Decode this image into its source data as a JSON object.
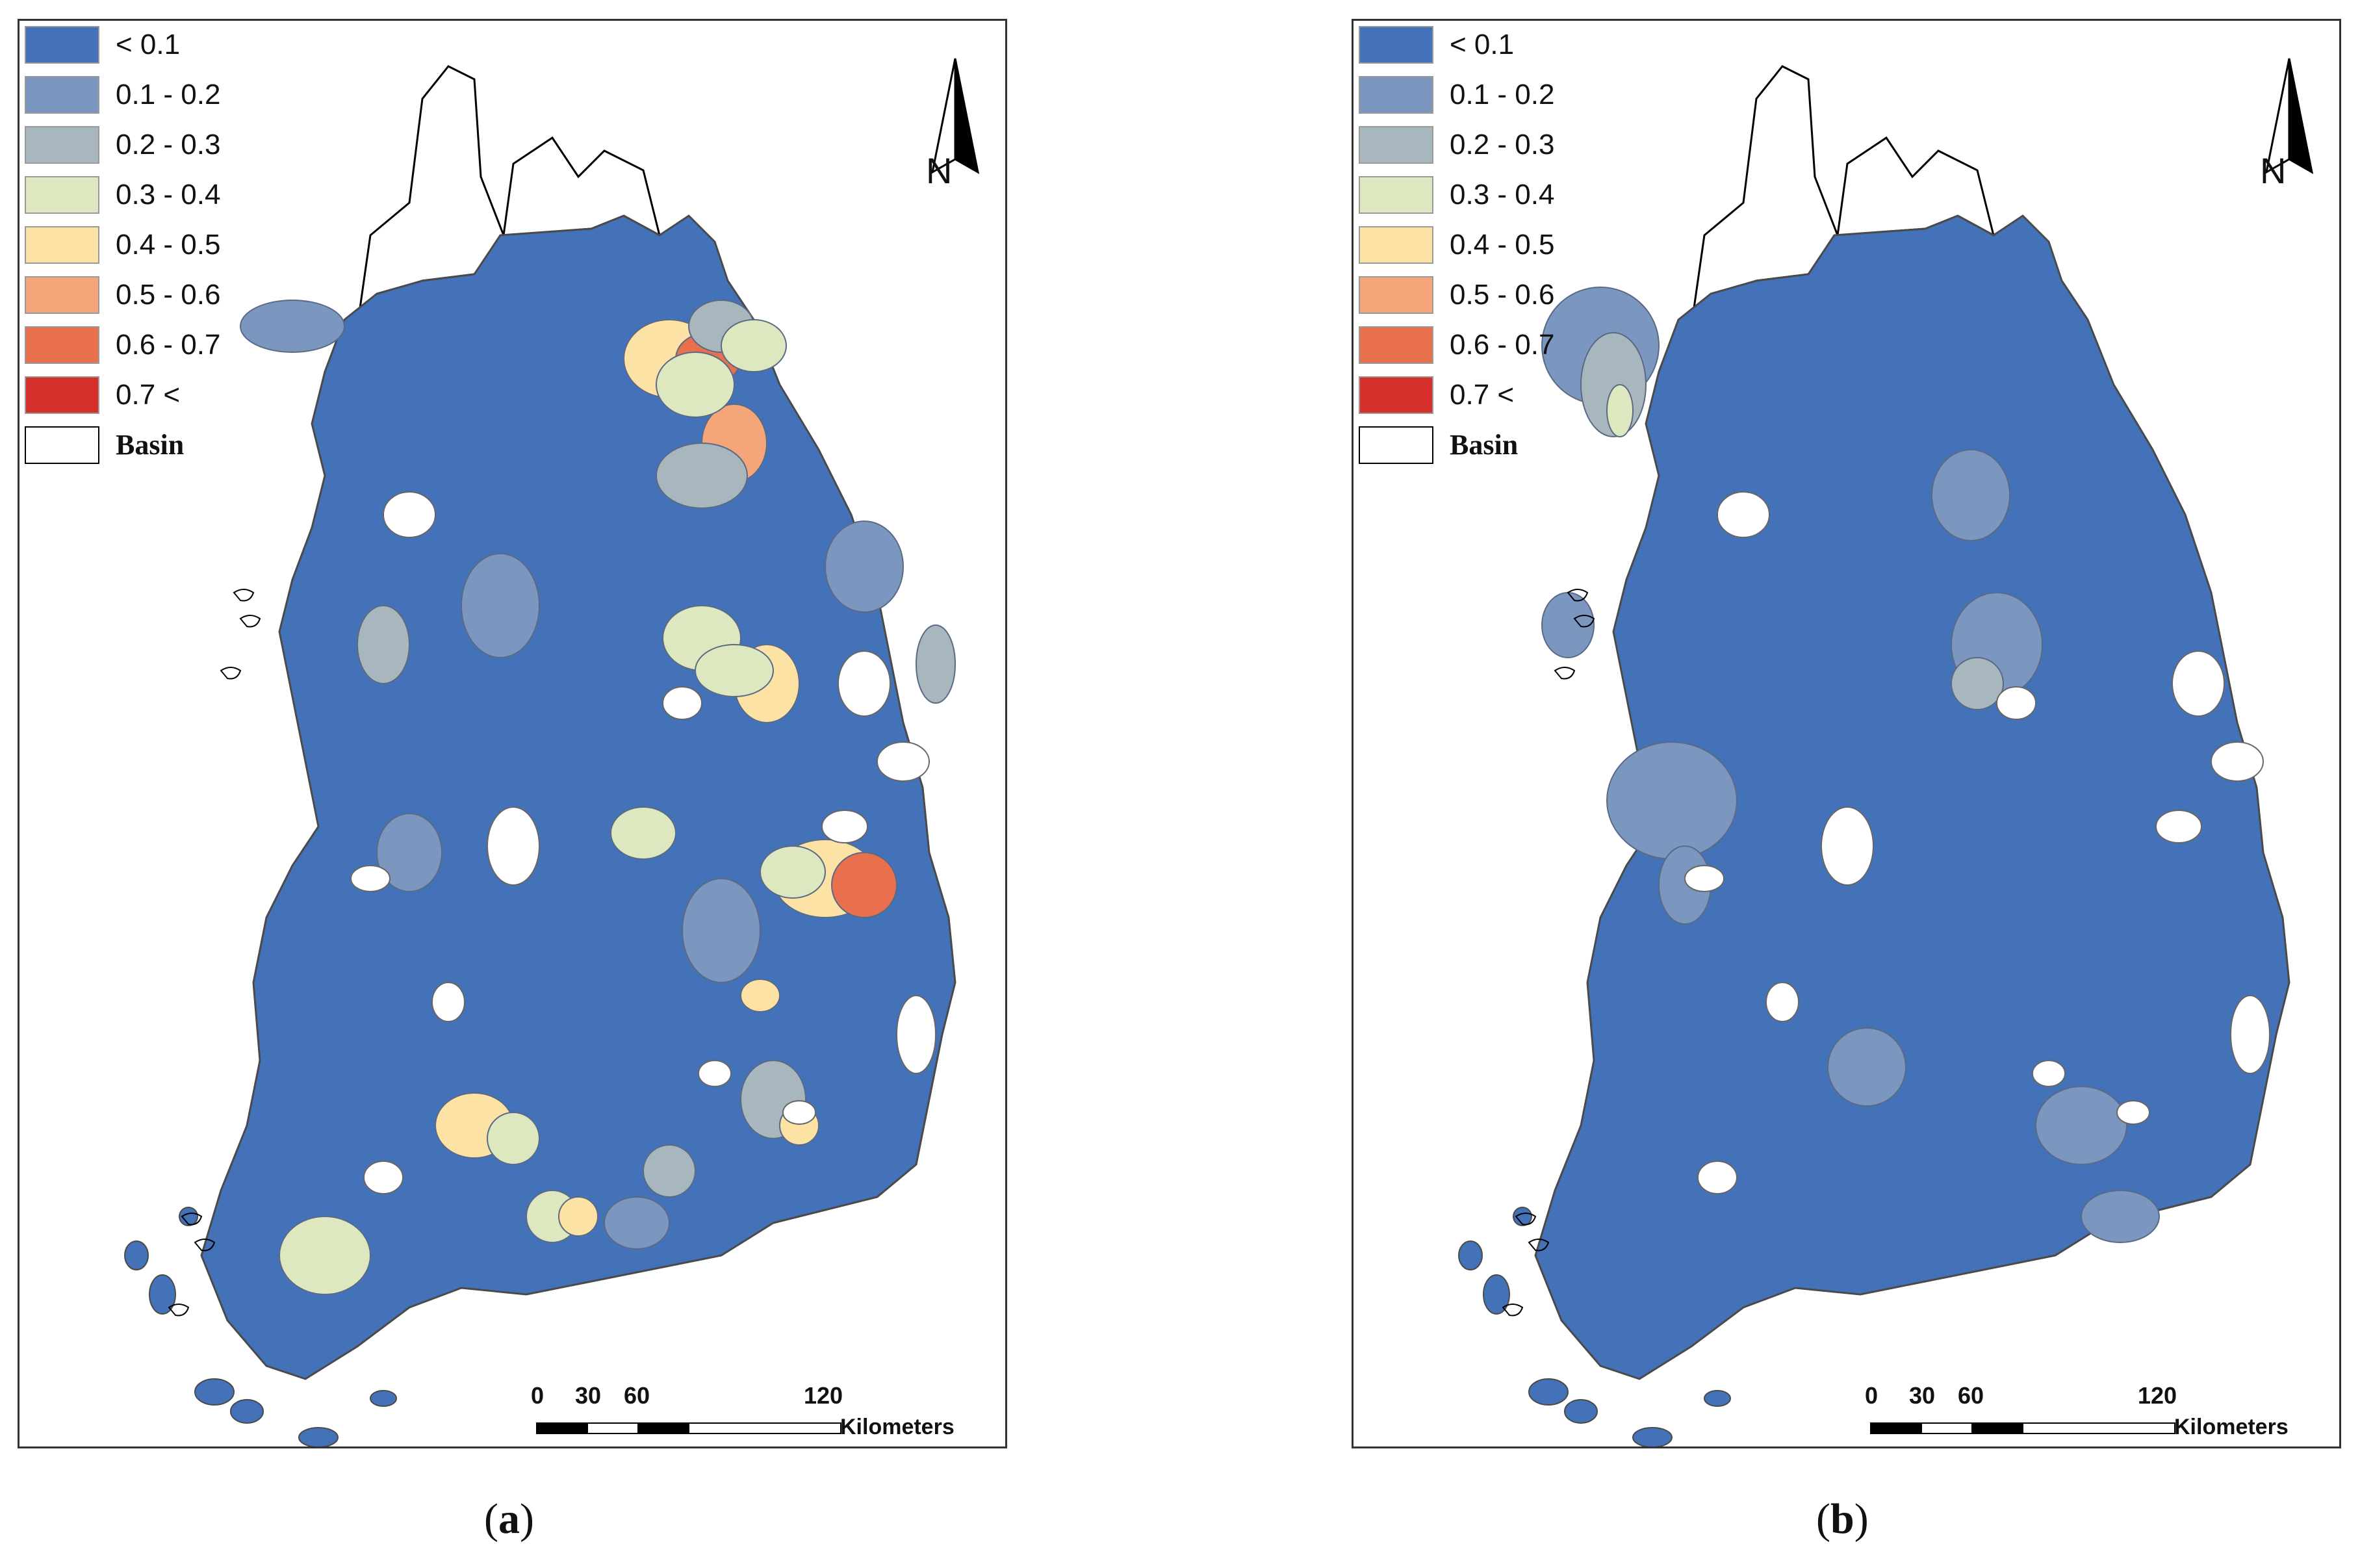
{
  "panels": [
    {
      "id": "a",
      "caption_open": "(",
      "caption_letter": "a",
      "caption_close": ")"
    },
    {
      "id": "b",
      "caption_open": "(",
      "caption_letter": "b",
      "caption_close": ")"
    }
  ],
  "legend": {
    "items": [
      {
        "label": "< 0.1",
        "color": "#4472b8"
      },
      {
        "label": "0.1 - 0.2",
        "color": "#7b96bf"
      },
      {
        "label": "0.2 - 0.3",
        "color": "#a8b7bd"
      },
      {
        "label": "0.3 - 0.4",
        "color": "#dde7c0"
      },
      {
        "label": "0.4 - 0.5",
        "color": "#fde2a6"
      },
      {
        "label": "0.5 - 0.6",
        "color": "#f4a57a"
      },
      {
        "label": "0.6 - 0.7",
        "color": "#e8704c"
      },
      {
        "label": "0.7 <",
        "color": "#d7302c"
      },
      {
        "label": "Basin",
        "color": "#ffffff"
      }
    ]
  },
  "north_arrow": {
    "label": "N"
  },
  "scale_bar": {
    "ticks": [
      "0",
      "30",
      "60",
      "120"
    ],
    "unit": "Kilometers"
  },
  "map": {
    "base_color": "#4472b8",
    "outline_color": "#4a4a4a",
    "basin_fill": "#ffffff",
    "highlight_colors": {
      "c1": "#7b96bf",
      "c2": "#a8b7bd",
      "c3": "#dde7c0",
      "c4": "#fde2a6",
      "c5": "#f4a57a",
      "c6": "#e8704c"
    }
  }
}
